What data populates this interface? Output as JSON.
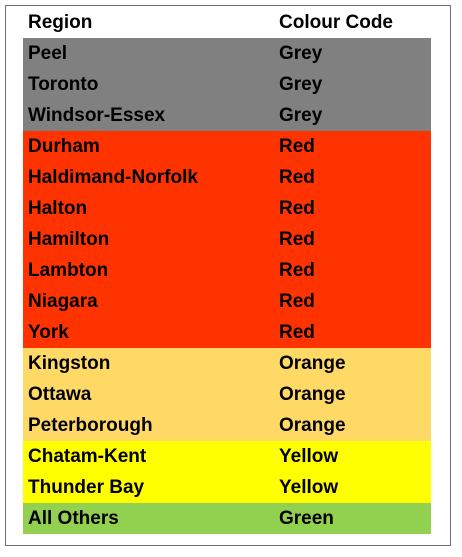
{
  "table": {
    "headers": {
      "region": "Region",
      "code": "Colour Code"
    },
    "rows": [
      {
        "region": "Peel",
        "code": "Grey",
        "color": "#808080"
      },
      {
        "region": "Toronto",
        "code": "Grey",
        "color": "#808080"
      },
      {
        "region": "Windsor-Essex",
        "code": "Grey",
        "color": "#808080"
      },
      {
        "region": "Durham",
        "code": "Red",
        "color": "#ff3300"
      },
      {
        "region": "Haldimand-Norfolk",
        "code": "Red",
        "color": "#ff3300"
      },
      {
        "region": "Halton",
        "code": "Red",
        "color": "#ff3300"
      },
      {
        "region": "Hamilton",
        "code": "Red",
        "color": "#ff3300"
      },
      {
        "region": "Lambton",
        "code": "Red",
        "color": "#ff3300"
      },
      {
        "region": "Niagara",
        "code": "Red",
        "color": "#ff3300"
      },
      {
        "region": "York",
        "code": "Red",
        "color": "#ff3300"
      },
      {
        "region": "Kingston",
        "code": "Orange",
        "color": "#ffd966"
      },
      {
        "region": "Ottawa",
        "code": "Orange",
        "color": "#ffd966"
      },
      {
        "region": "Peterborough",
        "code": "Orange",
        "color": "#ffd966"
      },
      {
        "region": "Chatam-Kent",
        "code": "Yellow",
        "color": "#ffff00"
      },
      {
        "region": "Thunder Bay",
        "code": "Yellow",
        "color": "#ffff00"
      },
      {
        "region": "All Others",
        "code": "Green",
        "color": "#92d050"
      }
    ]
  }
}
